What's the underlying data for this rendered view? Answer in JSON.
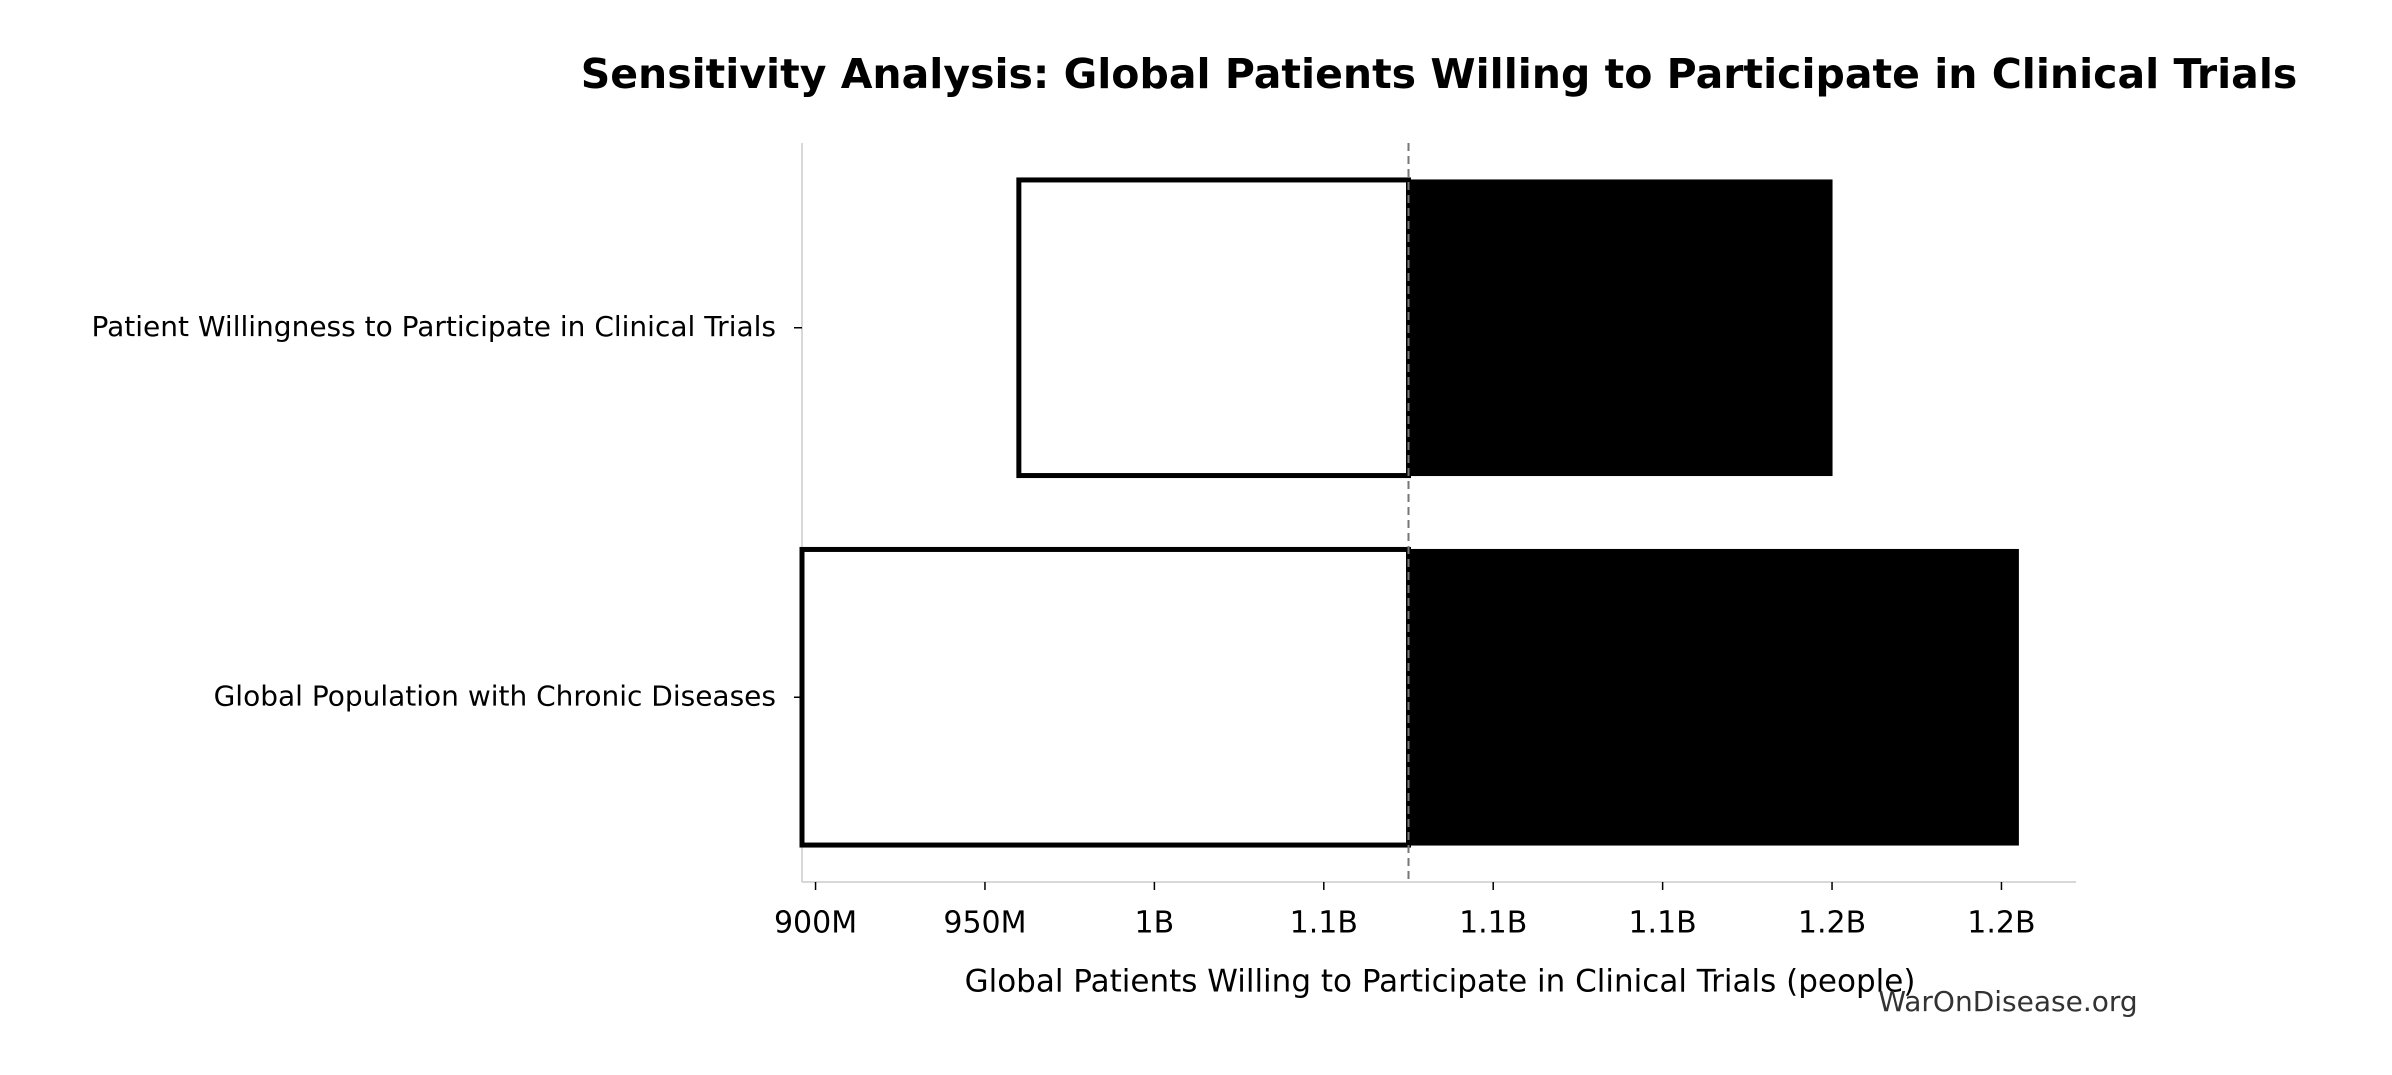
{
  "chart_data": {
    "type": "tornado",
    "title": "Sensitivity Analysis: Global Patients Willing to Participate in Clinical Trials",
    "xlabel": "Global Patients Willing to Participate in Clinical Trials (people)",
    "watermark": "WarOnDisease.org",
    "categories": [
      "Patient Willingness to Participate in Clinical Trials",
      "Global Population with Chronic Diseases"
    ],
    "base_value": 1075000000,
    "low_values": [
      960000000,
      896000000
    ],
    "high_values": [
      1200000000,
      1255000000
    ],
    "low_color": "#ffffff",
    "high_color": "#000000",
    "xlim": [
      896000000,
      1272000000
    ],
    "xticks": [
      {
        "value": 900000000,
        "label": "900M"
      },
      {
        "value": 950000000,
        "label": "950M"
      },
      {
        "value": 1000000000,
        "label": "1B"
      },
      {
        "value": 1050000000,
        "label": "1.1B"
      },
      {
        "value": 1100000000,
        "label": "1.1B"
      },
      {
        "value": 1150000000,
        "label": "1.1B"
      },
      {
        "value": 1200000000,
        "label": "1.2B"
      },
      {
        "value": 1250000000,
        "label": "1.2B"
      }
    ]
  }
}
